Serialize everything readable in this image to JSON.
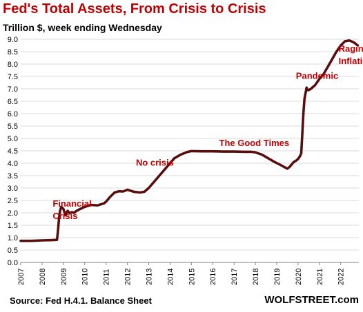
{
  "header": {
    "title": "Fed's Total Assets, From Crisis to Crisis",
    "subtitle": "Trillion $, week ending Wednesday"
  },
  "footer": {
    "source": "Source: Fed H.4.1. Balance Sheet",
    "brand": "WOLFSTREET.com"
  },
  "colors": {
    "title": "#c00000",
    "line": "#7a0000",
    "line_shadow": "#000000",
    "annotation": "#c00000",
    "grid": "#d9d9d9",
    "axis": "#808080"
  },
  "chart_data": {
    "type": "line",
    "title": "Fed's Total Assets, From Crisis to Crisis",
    "subtitle": "Trillion $, week ending Wednesday",
    "xlim": [
      2007,
      2022.85
    ],
    "ylim": [
      0,
      9.0
    ],
    "x_tick_labels": [
      "2007",
      "2008",
      "2009",
      "2010",
      "2011",
      "2012",
      "2013",
      "2014",
      "2015",
      "2016",
      "2017",
      "2018",
      "2019",
      "2020",
      "2021",
      "2022"
    ],
    "y_tick_labels": [
      "0.0",
      "0.5",
      "1.0",
      "1.5",
      "2.0",
      "2.5",
      "3.0",
      "3.5",
      "4.0",
      "4.5",
      "5.0",
      "5.5",
      "6.0",
      "6.5",
      "7.0",
      "7.5",
      "8.0",
      "8.5",
      "9.0"
    ],
    "grid": "horizontal",
    "series": [
      {
        "points": [
          [
            2007.0,
            0.87
          ],
          [
            2007.5,
            0.87
          ],
          [
            2008.0,
            0.89
          ],
          [
            2008.5,
            0.9
          ],
          [
            2008.7,
            0.91
          ],
          [
            2008.75,
            1.3
          ],
          [
            2008.8,
            1.8
          ],
          [
            2008.85,
            2.1
          ],
          [
            2008.9,
            2.24
          ],
          [
            2009.0,
            2.16
          ],
          [
            2009.1,
            1.9
          ],
          [
            2009.2,
            2.08
          ],
          [
            2009.3,
            1.98
          ],
          [
            2009.4,
            2.03
          ],
          [
            2009.5,
            2.0
          ],
          [
            2009.6,
            2.07
          ],
          [
            2009.8,
            2.16
          ],
          [
            2010.0,
            2.24
          ],
          [
            2010.3,
            2.32
          ],
          [
            2010.6,
            2.3
          ],
          [
            2010.9,
            2.38
          ],
          [
            2011.0,
            2.45
          ],
          [
            2011.2,
            2.65
          ],
          [
            2011.4,
            2.82
          ],
          [
            2011.6,
            2.87
          ],
          [
            2011.8,
            2.86
          ],
          [
            2012.0,
            2.93
          ],
          [
            2012.3,
            2.85
          ],
          [
            2012.6,
            2.82
          ],
          [
            2012.8,
            2.85
          ],
          [
            2013.0,
            3.0
          ],
          [
            2013.3,
            3.3
          ],
          [
            2013.6,
            3.6
          ],
          [
            2013.9,
            3.9
          ],
          [
            2014.2,
            4.2
          ],
          [
            2014.5,
            4.35
          ],
          [
            2014.8,
            4.45
          ],
          [
            2015.0,
            4.49
          ],
          [
            2015.5,
            4.48
          ],
          [
            2016.0,
            4.48
          ],
          [
            2016.5,
            4.47
          ],
          [
            2017.0,
            4.47
          ],
          [
            2017.5,
            4.46
          ],
          [
            2017.8,
            4.46
          ],
          [
            2018.0,
            4.44
          ],
          [
            2018.3,
            4.35
          ],
          [
            2018.6,
            4.2
          ],
          [
            2018.9,
            4.05
          ],
          [
            2019.2,
            3.92
          ],
          [
            2019.5,
            3.78
          ],
          [
            2019.6,
            3.85
          ],
          [
            2019.7,
            3.95
          ],
          [
            2019.8,
            4.05
          ],
          [
            2019.9,
            4.1
          ],
          [
            2020.0,
            4.17
          ],
          [
            2020.1,
            4.3
          ],
          [
            2020.15,
            4.4
          ],
          [
            2020.2,
            5.2
          ],
          [
            2020.25,
            6.0
          ],
          [
            2020.3,
            6.6
          ],
          [
            2020.4,
            7.05
          ],
          [
            2020.45,
            6.95
          ],
          [
            2020.5,
            6.95
          ],
          [
            2020.6,
            7.0
          ],
          [
            2020.8,
            7.15
          ],
          [
            2021.0,
            7.4
          ],
          [
            2021.2,
            7.6
          ],
          [
            2021.4,
            7.9
          ],
          [
            2021.6,
            8.2
          ],
          [
            2021.8,
            8.5
          ],
          [
            2022.0,
            8.75
          ],
          [
            2022.2,
            8.92
          ],
          [
            2022.4,
            8.95
          ],
          [
            2022.6,
            8.88
          ],
          [
            2022.8,
            8.75
          ]
        ]
      }
    ],
    "annotations": [
      {
        "lines": [
          "Financial",
          "Crisis"
        ],
        "x": 2008.5,
        "y": 2.25
      },
      {
        "lines": [
          "No crisis"
        ],
        "x": 2012.4,
        "y": 3.9
      },
      {
        "lines": [
          "The Good Times"
        ],
        "x": 2016.3,
        "y": 4.7
      },
      {
        "lines": [
          "Pandemic"
        ],
        "x": 2019.9,
        "y": 7.4
      },
      {
        "lines": [
          "Raging",
          "Inflation"
        ],
        "x": 2021.9,
        "y": 8.5
      }
    ]
  }
}
